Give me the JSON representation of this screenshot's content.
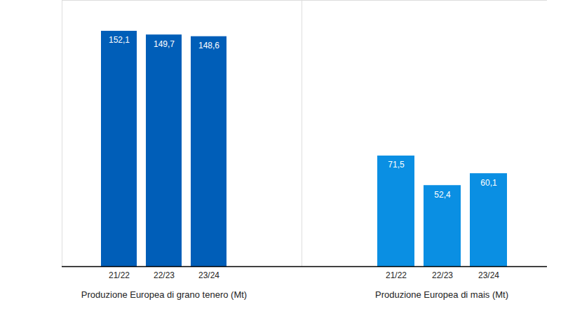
{
  "chart_data": [
    {
      "type": "bar",
      "title": "Produzione Europea di grano tenero (Mt)",
      "categories": [
        "21/22",
        "22/23",
        "23/24"
      ],
      "values": [
        152.1,
        149.7,
        148.6
      ],
      "value_labels": [
        "152,1",
        "149,7",
        "148,6"
      ],
      "color": "#005eb8",
      "ylim": [
        0,
        172
      ],
      "yticks": [],
      "data_labels": true,
      "tick_labels": "x"
    },
    {
      "type": "bar",
      "title": "Produzione Europea di mais (Mt)",
      "categories": [
        "21/22",
        "22/23",
        "23/24"
      ],
      "values": [
        71.5,
        52.4,
        60.1
      ],
      "value_labels": [
        "71,5",
        "52,4",
        "60,1"
      ],
      "color": "#0a8fe3",
      "ylim": [
        0,
        172
      ],
      "yticks": [],
      "data_labels": true,
      "tick_labels": "x"
    }
  ]
}
